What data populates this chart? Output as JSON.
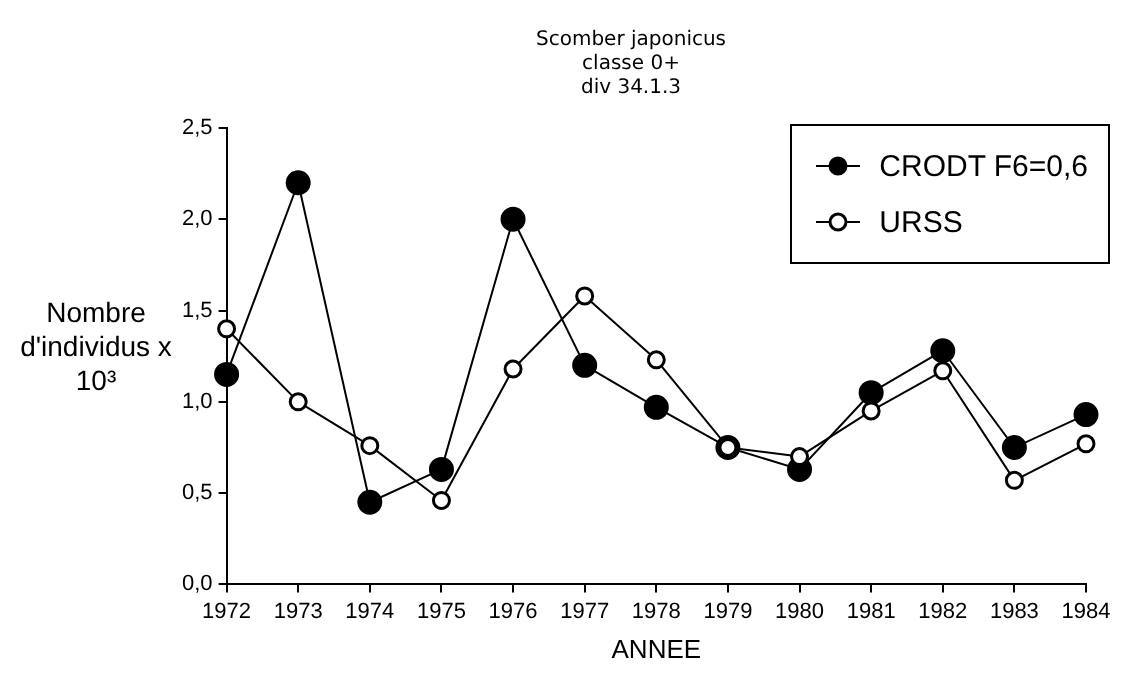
{
  "chart_data": {
    "type": "line",
    "title": [
      "Scomber japonicus",
      "classe 0+",
      "div 34.1.3"
    ],
    "xlabel": "ANNEE",
    "ylabel": "Nombre d'individus x 10³",
    "categories": [
      "1972",
      "1973",
      "1974",
      "1975",
      "1976",
      "1977",
      "1978",
      "1979",
      "1980",
      "1981",
      "1982",
      "1983",
      "1984"
    ],
    "series": [
      {
        "name": "CRODT F6=0,6",
        "color": "#000000",
        "values": [
          1.15,
          2.2,
          0.45,
          0.63,
          2.0,
          1.2,
          0.97,
          0.75,
          0.63,
          1.05,
          1.28,
          0.75,
          0.93
        ]
      },
      {
        "name": "URSS",
        "color": "#000000",
        "values": [
          1.4,
          1.0,
          0.76,
          0.46,
          1.18,
          1.58,
          1.23,
          0.75,
          0.7,
          0.95,
          1.17,
          0.57,
          0.77
        ]
      }
    ],
    "ylim": [
      0,
      2.5
    ],
    "yticks": [
      {
        "value": 0,
        "label": "0,0"
      },
      {
        "value": 0.5,
        "label": "0,5"
      },
      {
        "value": 1,
        "label": "1,0"
      },
      {
        "value": 1.5,
        "label": "1,5"
      },
      {
        "value": 2,
        "label": "2,0"
      },
      {
        "value": 2.5,
        "label": "2,5"
      }
    ],
    "grid": false,
    "legend": "top right",
    "marker": "circle",
    "line_style": "solid"
  }
}
